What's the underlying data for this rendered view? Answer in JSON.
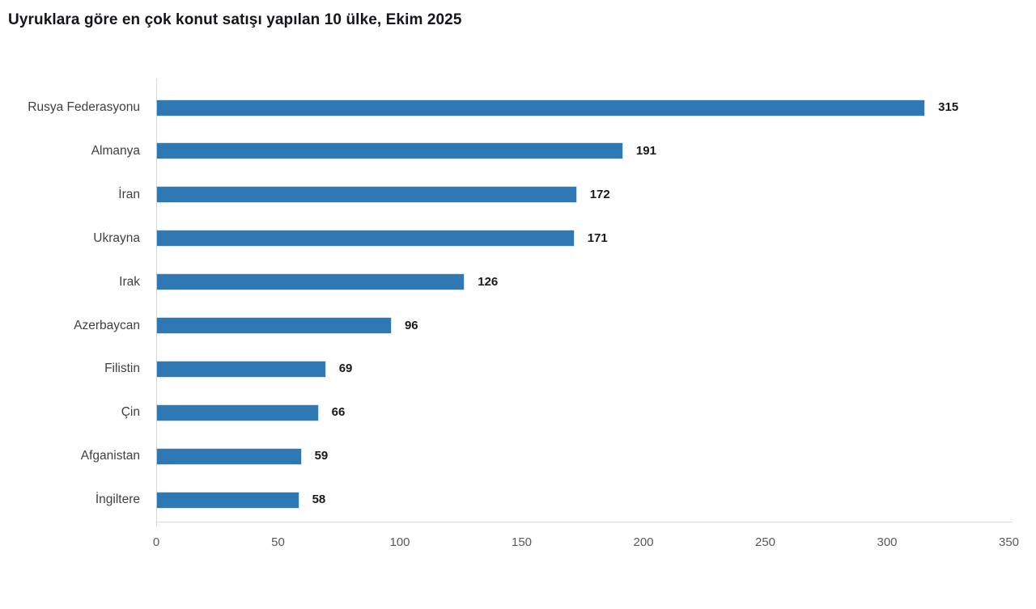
{
  "title": "Uyruklara göre en çok konut satışı yapılan 10 ülke, Ekim 2025",
  "chart_data": {
    "type": "bar",
    "orientation": "horizontal",
    "title": "Uyruklara göre en çok konut satışı yapılan 10 ülke, Ekim 2025",
    "categories": [
      "Rusya Federasyonu",
      "Almanya",
      "İran",
      "Ukrayna",
      "Irak",
      "Azerbaycan",
      "Filistin",
      "Çin",
      "Afganistan",
      "İngiltere"
    ],
    "values": [
      315,
      191,
      172,
      171,
      126,
      96,
      69,
      66,
      59,
      58
    ],
    "xlabel": "",
    "ylabel": "",
    "xlim": [
      0,
      350
    ],
    "x_ticks": [
      0,
      50,
      100,
      150,
      200,
      250,
      300,
      350
    ],
    "grid": false,
    "legend": "none",
    "value_labels_shown": true,
    "bar_color": "#2e79b4",
    "value_label_color": "#191919",
    "category_label_color": "#404040",
    "tick_label_color": "#595959",
    "axis_line_color": "#d9d9d9",
    "title_color": "#15151d",
    "background_color": "#ffffff"
  }
}
